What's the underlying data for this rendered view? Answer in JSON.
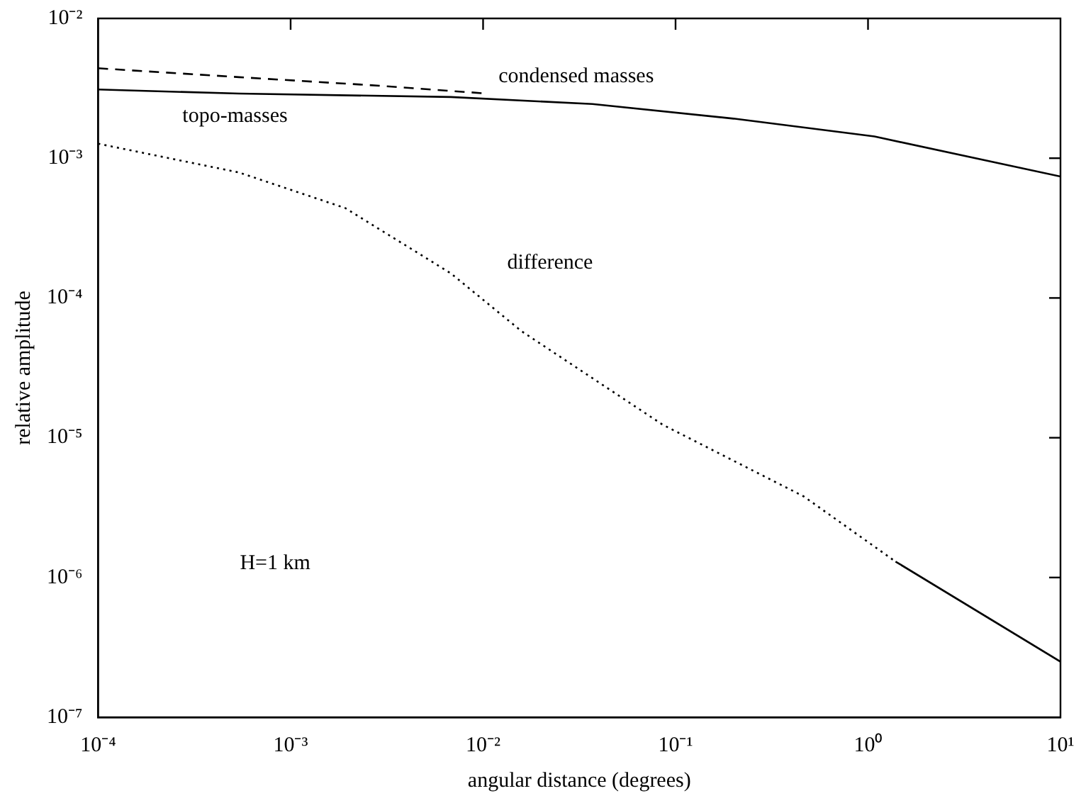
{
  "chart_data": {
    "type": "line",
    "xlabel": "angular distance (degrees)",
    "ylabel": "relative amplitude",
    "log": "xy",
    "grid": false,
    "legend": false,
    "marker": "none",
    "xlim": [
      0.0001,
      10
    ],
    "ylim": [
      1e-07,
      0.01
    ],
    "xticks": [
      {
        "value": 0.0001,
        "label": "10⁻⁴"
      },
      {
        "value": 0.001,
        "label": "10⁻³"
      },
      {
        "value": 0.01,
        "label": "10⁻²"
      },
      {
        "value": 0.1,
        "label": "10⁻¹"
      },
      {
        "value": 1,
        "label": "10⁰"
      },
      {
        "value": 10,
        "label": "10¹"
      }
    ],
    "yticks": [
      {
        "value": 1e-07,
        "label": "10⁻⁷"
      },
      {
        "value": 1e-06,
        "label": "10⁻⁶"
      },
      {
        "value": 1e-05,
        "label": "10⁻⁵"
      },
      {
        "value": 0.0001,
        "label": "10⁻⁴"
      },
      {
        "value": 0.001,
        "label": "10⁻³"
      },
      {
        "value": 0.01,
        "label": "10⁻²"
      }
    ],
    "annotations": [
      "H=1 km"
    ],
    "series": [
      {
        "name": "condensed masses",
        "color": "#000000",
        "line_style": "dashed",
        "x": [
          0.0001,
          0.00054,
          0.0029,
          0.0105
        ],
        "values": [
          0.0044,
          0.0038,
          0.0033,
          0.0029
        ]
      },
      {
        "name": "topo-masses",
        "color": "#000000",
        "line_style": "solid",
        "x": [
          0.0001,
          0.00054,
          0.0068,
          0.037,
          0.2,
          1.08,
          10
        ],
        "values": [
          0.0031,
          0.0029,
          0.00274,
          0.00244,
          0.00192,
          0.00143,
          0.00074
        ]
      },
      {
        "name": "difference",
        "color": "#000000",
        "line_style": "dotted",
        "x": [
          0.0001,
          0.00054,
          0.00192,
          0.0068,
          0.0158,
          0.0857,
          0.464,
          1.39
        ],
        "values": [
          0.00127,
          0.00079,
          0.00044,
          0.00015,
          5.8e-05,
          1.24e-05,
          3.8e-06,
          1.3e-06
        ]
      },
      {
        "color": "#000000",
        "line_style": "solid",
        "x": [
          1.39,
          10
        ],
        "values": [
          1.3e-06,
          2.5e-07
        ]
      }
    ]
  }
}
